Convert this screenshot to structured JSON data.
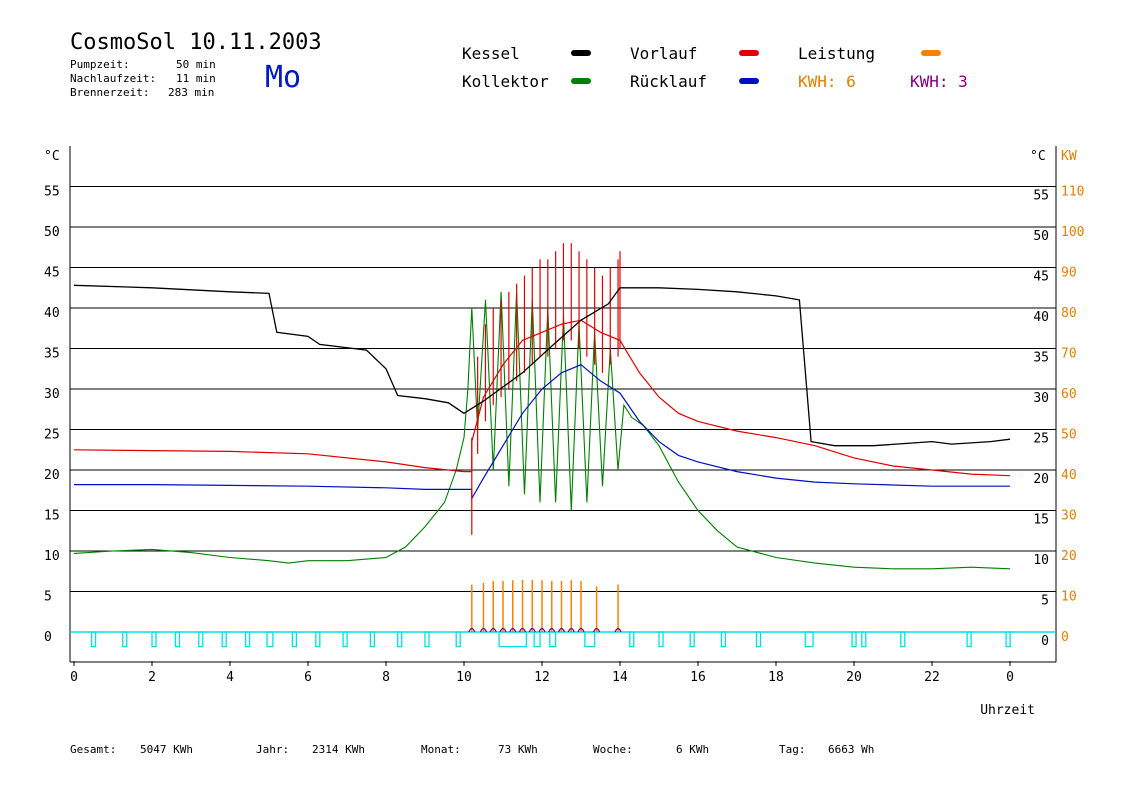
{
  "header": {
    "title": "CosmoSol 10.11.2003",
    "day": "Mo",
    "stats": [
      {
        "label": "Pumpzeit:",
        "value": "50 min"
      },
      {
        "label": "Nachlaufzeit:",
        "value": "11 min"
      },
      {
        "label": "Brennerzeit:",
        "value": "283 min"
      }
    ]
  },
  "legend": {
    "kessel": "Kessel",
    "kollektor": "Kollektor",
    "vorlauf": "Vorlauf",
    "ruecklauf": "Rücklauf",
    "leistung": "Leistung",
    "kwh1": "KWH: 6",
    "kwh2": "KWH: 3"
  },
  "colors": {
    "kessel": "#000000",
    "vorlauf": "#e00000",
    "ruecklauf": "#0010c0",
    "kollektor": "#008000",
    "leistung": "#ff8000",
    "leistung2": "#800080",
    "pumpe": "#00e0e0",
    "kwh_axis": "#e08000"
  },
  "footer": [
    {
      "label": "Gesamt:",
      "value": "5047 KWh"
    },
    {
      "label": "Jahr:",
      "value": "2314 KWh"
    },
    {
      "label": "Monat:",
      "value": "73 KWh"
    },
    {
      "label": "Woche:",
      "value": "6 KWh"
    },
    {
      "label": "Tag:",
      "value": "6663 Wh"
    }
  ],
  "chart_data": {
    "type": "line",
    "xlabel": "Uhrzeit",
    "ylabel_left": "°C",
    "ylabel_right": "°C",
    "ylabel_right2": "KW",
    "xlim": [
      0,
      24
    ],
    "ylim": [
      0,
      60
    ],
    "ylim_right2": [
      0,
      120
    ],
    "grid": true,
    "x_ticks": [
      "0",
      "2",
      "4",
      "6",
      "8",
      "10",
      "12",
      "14",
      "16",
      "18",
      "20",
      "22",
      "0"
    ],
    "y_ticks": [
      "0",
      "5",
      "10",
      "15",
      "20",
      "25",
      "30",
      "35",
      "40",
      "45",
      "50",
      "55"
    ],
    "y2_ticks": [
      "0",
      "10",
      "20",
      "30",
      "40",
      "50",
      "60",
      "70",
      "80",
      "90",
      "100",
      "110"
    ],
    "series": [
      {
        "name": "Kessel",
        "key": "kessel",
        "points": [
          [
            0,
            42.8
          ],
          [
            2,
            42.5
          ],
          [
            4,
            42.0
          ],
          [
            5,
            41.8
          ],
          [
            5.2,
            37
          ],
          [
            6,
            36.5
          ],
          [
            6.3,
            35.5
          ],
          [
            7.5,
            34.8
          ],
          [
            8,
            32.5
          ],
          [
            8.3,
            29.2
          ],
          [
            9,
            28.8
          ],
          [
            9.6,
            28.3
          ],
          [
            10,
            27.0
          ],
          [
            10.5,
            28.5
          ],
          [
            11.5,
            32
          ],
          [
            12.3,
            35.5
          ],
          [
            13,
            38.5
          ],
          [
            13.7,
            40.5
          ],
          [
            14,
            42.5
          ],
          [
            15,
            42.5
          ],
          [
            16,
            42.3
          ],
          [
            17,
            42
          ],
          [
            18,
            41.5
          ],
          [
            18.6,
            41
          ],
          [
            18.9,
            23.5
          ],
          [
            19.5,
            23.0
          ],
          [
            20.5,
            23.0
          ],
          [
            22,
            23.5
          ],
          [
            22.5,
            23.2
          ],
          [
            23.5,
            23.5
          ],
          [
            24,
            23.8
          ]
        ]
      },
      {
        "name": "Vorlauf",
        "key": "vorlauf",
        "points": [
          [
            0,
            22.5
          ],
          [
            2,
            22.4
          ],
          [
            4,
            22.3
          ],
          [
            6,
            22.0
          ],
          [
            8,
            21.0
          ],
          [
            9,
            20.3
          ],
          [
            10,
            19.8
          ],
          [
            10.2,
            19.8
          ],
          [
            10.2,
            23.5
          ],
          [
            10.5,
            29
          ],
          [
            11,
            33
          ],
          [
            11.5,
            36
          ],
          [
            12,
            37
          ],
          [
            12.5,
            38
          ],
          [
            13,
            38.5
          ],
          [
            13.5,
            37
          ],
          [
            14,
            36
          ],
          [
            14.5,
            32
          ],
          [
            15,
            29
          ],
          [
            15.5,
            27
          ],
          [
            16,
            26
          ],
          [
            17,
            24.8
          ],
          [
            18,
            24
          ],
          [
            19,
            23
          ],
          [
            20,
            21.5
          ],
          [
            21,
            20.5
          ],
          [
            22,
            20.0
          ],
          [
            23,
            19.5
          ],
          [
            24,
            19.3
          ]
        ],
        "spikes": [
          10.2,
          10.35,
          10.55,
          10.75,
          10.95,
          11.15,
          11.35,
          11.55,
          11.75,
          11.95,
          12.15,
          12.35,
          12.55,
          12.75,
          12.95,
          13.15,
          13.35,
          13.55,
          13.75,
          13.95,
          14.0
        ],
        "spike_peaks": [
          24,
          34,
          38,
          40,
          41,
          42,
          43,
          44,
          45,
          46,
          46,
          47,
          48,
          48,
          47,
          46,
          45,
          44,
          45,
          46,
          47
        ]
      },
      {
        "name": "Rücklauf",
        "key": "ruecklauf",
        "points": [
          [
            0,
            18.2
          ],
          [
            2,
            18.2
          ],
          [
            4,
            18.1
          ],
          [
            6,
            18.0
          ],
          [
            8,
            17.8
          ],
          [
            9,
            17.6
          ],
          [
            10,
            17.6
          ],
          [
            10.2,
            17.6
          ],
          [
            10.2,
            16.5
          ],
          [
            10.5,
            19
          ],
          [
            11,
            23
          ],
          [
            11.5,
            27
          ],
          [
            12,
            30
          ],
          [
            12.5,
            32
          ],
          [
            13,
            33
          ],
          [
            13.5,
            31
          ],
          [
            14,
            29.5
          ],
          [
            14.5,
            26
          ],
          [
            15,
            23.5
          ],
          [
            15.5,
            21.8
          ],
          [
            16,
            21
          ],
          [
            17,
            19.8
          ],
          [
            18,
            19
          ],
          [
            19,
            18.5
          ],
          [
            20,
            18.3
          ],
          [
            22,
            18.0
          ],
          [
            24,
            18.0
          ]
        ]
      },
      {
        "name": "Kollektor",
        "key": "kollektor",
        "points": [
          [
            0,
            9.7
          ],
          [
            1,
            10.0
          ],
          [
            2,
            10.2
          ],
          [
            3,
            9.8
          ],
          [
            4,
            9.2
          ],
          [
            5,
            8.8
          ],
          [
            5.5,
            8.5
          ],
          [
            6,
            8.8
          ],
          [
            7,
            8.8
          ],
          [
            8,
            9.2
          ],
          [
            8.5,
            10.5
          ],
          [
            9,
            13
          ],
          [
            9.5,
            16
          ],
          [
            9.8,
            20
          ],
          [
            10,
            24
          ],
          [
            10.1,
            30
          ],
          [
            10.2,
            40
          ],
          [
            10.35,
            25
          ],
          [
            10.55,
            41
          ],
          [
            10.75,
            20
          ],
          [
            10.95,
            42
          ],
          [
            11.15,
            18
          ],
          [
            11.35,
            42
          ],
          [
            11.55,
            17
          ],
          [
            11.75,
            41
          ],
          [
            11.95,
            16
          ],
          [
            12.15,
            40
          ],
          [
            12.35,
            16
          ],
          [
            12.55,
            39
          ],
          [
            12.75,
            15
          ],
          [
            12.95,
            38
          ],
          [
            13.15,
            16
          ],
          [
            13.35,
            37
          ],
          [
            13.55,
            18
          ],
          [
            13.75,
            35
          ],
          [
            13.95,
            20
          ],
          [
            14.1,
            28
          ],
          [
            14.3,
            26.5
          ],
          [
            14.6,
            25.5
          ],
          [
            15,
            23
          ],
          [
            15.5,
            18.5
          ],
          [
            16,
            15
          ],
          [
            16.5,
            12.5
          ],
          [
            17,
            10.5
          ],
          [
            18,
            9.2
          ],
          [
            19,
            8.5
          ],
          [
            20,
            8.0
          ],
          [
            21,
            7.8
          ],
          [
            22,
            7.8
          ],
          [
            23,
            8.0
          ],
          [
            24,
            7.8
          ]
        ]
      },
      {
        "name": "Leistung",
        "key": "leistung",
        "bars": [
          [
            10.2,
            13
          ],
          [
            10.5,
            13.5
          ],
          [
            10.75,
            14
          ],
          [
            11,
            14
          ],
          [
            11.25,
            14.2
          ],
          [
            11.5,
            14.3
          ],
          [
            11.75,
            14.3
          ],
          [
            12,
            14.2
          ],
          [
            12.25,
            14
          ],
          [
            12.5,
            14
          ],
          [
            12.75,
            14.2
          ],
          [
            13,
            14
          ],
          [
            13.4,
            12.5
          ],
          [
            13.95,
            13
          ]
        ]
      },
      {
        "name": "Pumpe",
        "key": "pumpe",
        "pulses": [
          [
            0.45,
            0.1
          ],
          [
            1.25,
            0.1
          ],
          [
            2.0,
            0.1
          ],
          [
            2.6,
            0.1
          ],
          [
            3.2,
            0.1
          ],
          [
            3.8,
            0.1
          ],
          [
            4.4,
            0.1
          ],
          [
            4.95,
            0.15
          ],
          [
            5.6,
            0.1
          ],
          [
            6.2,
            0.1
          ],
          [
            6.9,
            0.1
          ],
          [
            7.6,
            0.1
          ],
          [
            8.3,
            0.1
          ],
          [
            9.0,
            0.1
          ],
          [
            9.8,
            0.1
          ],
          [
            10.9,
            0.7
          ],
          [
            11.8,
            0.15
          ],
          [
            12.2,
            0.15
          ],
          [
            13.1,
            0.25
          ],
          [
            14.25,
            0.1
          ],
          [
            15.0,
            0.1
          ],
          [
            15.8,
            0.1
          ],
          [
            16.6,
            0.1
          ],
          [
            17.5,
            0.1
          ],
          [
            18.75,
            0.2
          ],
          [
            19.95,
            0.1
          ],
          [
            20.2,
            0.1
          ],
          [
            21.2,
            0.1
          ],
          [
            22.9,
            0.1
          ],
          [
            23.9,
            0.1
          ]
        ]
      }
    ]
  }
}
